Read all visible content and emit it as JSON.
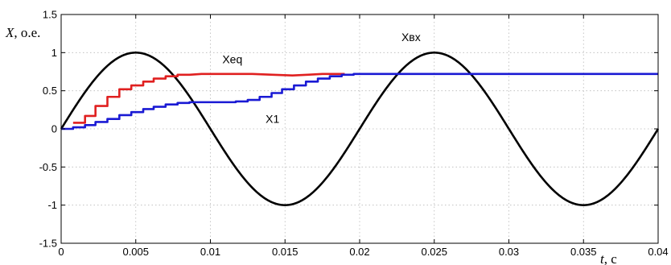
{
  "chart_data": {
    "type": "line",
    "xlabel": {
      "var": "t",
      "unit": ", c"
    },
    "ylabel": {
      "var": "X",
      "unit": ", o.e."
    },
    "xlim": [
      0,
      0.04
    ],
    "ylim": [
      -1.5,
      1.5
    ],
    "grid": true,
    "x_ticks": [
      {
        "v": 0,
        "label": "0"
      },
      {
        "v": 0.005,
        "label": "0.005"
      },
      {
        "v": 0.01,
        "label": "0.01"
      },
      {
        "v": 0.015,
        "label": "0.015"
      },
      {
        "v": 0.02,
        "label": "0.02"
      },
      {
        "v": 0.025,
        "label": "0.025"
      },
      {
        "v": 0.03,
        "label": "0.03"
      },
      {
        "v": 0.035,
        "label": "0.035"
      },
      {
        "v": 0.04,
        "label": "0.04"
      }
    ],
    "y_ticks": [
      {
        "v": 1.5,
        "label": "1.5"
      },
      {
        "v": 1,
        "label": "1"
      },
      {
        "v": 0.5,
        "label": "0.5"
      },
      {
        "v": 0,
        "label": "0"
      },
      {
        "v": -0.5,
        "label": "-0.5"
      },
      {
        "v": -1,
        "label": "-1"
      },
      {
        "v": -1.5,
        "label": "-1.5"
      }
    ],
    "series": [
      {
        "name": "Xвх",
        "color": "#000000",
        "kind": "sine",
        "amplitude": 1,
        "frequency_hz": 50,
        "x_range": [
          0,
          0.04
        ],
        "label_at": [
          0.0228,
          1.15
        ]
      },
      {
        "name": "Xeq",
        "color": "#e02020",
        "kind": "line",
        "label_at": [
          0.0108,
          0.86
        ],
        "points": [
          [
            0.0008,
            0.08
          ],
          [
            0.0016,
            0.08
          ],
          [
            0.0016,
            0.17
          ],
          [
            0.0023,
            0.17
          ],
          [
            0.0023,
            0.3
          ],
          [
            0.0031,
            0.3
          ],
          [
            0.0031,
            0.42
          ],
          [
            0.0039,
            0.42
          ],
          [
            0.0039,
            0.52
          ],
          [
            0.0047,
            0.52
          ],
          [
            0.0047,
            0.57
          ],
          [
            0.0055,
            0.57
          ],
          [
            0.0055,
            0.62
          ],
          [
            0.0062,
            0.62
          ],
          [
            0.0062,
            0.66
          ],
          [
            0.007,
            0.66
          ],
          [
            0.007,
            0.69
          ],
          [
            0.0078,
            0.69
          ],
          [
            0.0078,
            0.71
          ],
          [
            0.0086,
            0.71
          ],
          [
            0.0094,
            0.72
          ],
          [
            0.011,
            0.72
          ],
          [
            0.0128,
            0.72
          ],
          [
            0.0142,
            0.71
          ],
          [
            0.0155,
            0.7
          ],
          [
            0.0165,
            0.71
          ],
          [
            0.0175,
            0.72
          ],
          [
            0.0185,
            0.72
          ],
          [
            0.019,
            0.72
          ]
        ]
      },
      {
        "name": "X1",
        "color": "#1a1ad4",
        "kind": "line",
        "label_at": [
          0.0137,
          0.08
        ],
        "points": [
          [
            0,
            0
          ],
          [
            0.0008,
            0
          ],
          [
            0.0008,
            0.02
          ],
          [
            0.0016,
            0.02
          ],
          [
            0.0016,
            0.05
          ],
          [
            0.0023,
            0.05
          ],
          [
            0.0023,
            0.09
          ],
          [
            0.0031,
            0.09
          ],
          [
            0.0031,
            0.13
          ],
          [
            0.0039,
            0.13
          ],
          [
            0.0039,
            0.18
          ],
          [
            0.0047,
            0.18
          ],
          [
            0.0047,
            0.22
          ],
          [
            0.0055,
            0.22
          ],
          [
            0.0055,
            0.26
          ],
          [
            0.0062,
            0.26
          ],
          [
            0.0062,
            0.29
          ],
          [
            0.007,
            0.29
          ],
          [
            0.007,
            0.32
          ],
          [
            0.0078,
            0.32
          ],
          [
            0.0078,
            0.34
          ],
          [
            0.0086,
            0.34
          ],
          [
            0.0086,
            0.35
          ],
          [
            0.0117,
            0.35
          ],
          [
            0.0117,
            0.36
          ],
          [
            0.0125,
            0.36
          ],
          [
            0.0125,
            0.38
          ],
          [
            0.0133,
            0.38
          ],
          [
            0.0133,
            0.42
          ],
          [
            0.0141,
            0.42
          ],
          [
            0.0141,
            0.47
          ],
          [
            0.0148,
            0.47
          ],
          [
            0.0148,
            0.52
          ],
          [
            0.0156,
            0.52
          ],
          [
            0.0156,
            0.57
          ],
          [
            0.0164,
            0.57
          ],
          [
            0.0164,
            0.62
          ],
          [
            0.0172,
            0.62
          ],
          [
            0.0172,
            0.66
          ],
          [
            0.018,
            0.66
          ],
          [
            0.018,
            0.69
          ],
          [
            0.0188,
            0.69
          ],
          [
            0.0188,
            0.71
          ],
          [
            0.0196,
            0.71
          ],
          [
            0.0196,
            0.72
          ],
          [
            0.04,
            0.72
          ]
        ]
      }
    ]
  }
}
